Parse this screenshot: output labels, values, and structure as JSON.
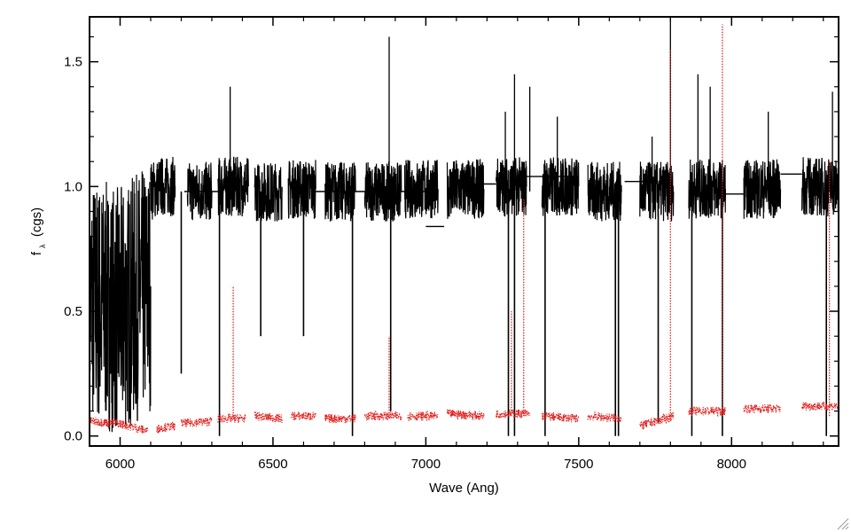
{
  "chart_data": {
    "type": "line",
    "title": "",
    "xlabel": "Wave (Ang)",
    "ylabel_main": "f",
    "ylabel_sub": "λ",
    "ylabel_unit": "(cgs)",
    "xlim": [
      5900,
      8350
    ],
    "ylim": [
      -0.04,
      1.68
    ],
    "xticks": [
      6000,
      6500,
      7000,
      7500,
      8000
    ],
    "xtick_labels": [
      "6000",
      "6500",
      "7000",
      "7500",
      "8000"
    ],
    "xminor_step": 100,
    "yticks": [
      0.0,
      0.5,
      1.0,
      1.5
    ],
    "ytick_labels": [
      "0.0",
      "0.5",
      "1.0",
      "1.5"
    ],
    "yminor_step": 0.1,
    "grid": false,
    "series": [
      {
        "style": "solid",
        "color": "#000000",
        "segments": [
          {
            "x": [
              5900,
              6000,
              6100
            ],
            "y": [
              0.55,
              0.5,
              0.6
            ]
          },
          {
            "x": [
              6100,
              6130,
              6180
            ],
            "y": [
              0.98,
              1.0,
              1.0
            ]
          },
          {
            "x": [
              6220,
              6300
            ],
            "y": [
              0.98,
              0.98
            ]
          },
          {
            "x": [
              6320,
              6420
            ],
            "y": [
              1.0,
              1.0
            ]
          },
          {
            "x": [
              6440,
              6530
            ],
            "y": [
              0.98,
              0.98
            ]
          },
          {
            "x": [
              6550,
              6640
            ],
            "y": [
              0.99,
              0.99
            ]
          },
          {
            "x": [
              6670,
              6770
            ],
            "y": [
              0.98,
              0.98
            ]
          },
          {
            "x": [
              6800,
              6920
            ],
            "y": [
              0.98,
              0.98
            ]
          },
          {
            "x": [
              6930,
              7040
            ],
            "y": [
              0.99,
              0.99
            ]
          },
          {
            "x": [
              7070,
              7190
            ],
            "y": [
              0.99,
              0.99
            ]
          },
          {
            "x": [
              7230,
              7330
            ],
            "y": [
              1.0,
              1.0
            ]
          },
          {
            "x": [
              7380,
              7500
            ],
            "y": [
              1.0,
              1.0
            ]
          },
          {
            "x": [
              7530,
              7640
            ],
            "y": [
              0.98,
              0.98
            ]
          },
          {
            "x": [
              7700,
              7810
            ],
            "y": [
              0.98,
              0.98
            ]
          },
          {
            "x": [
              7860,
              7980
            ],
            "y": [
              0.99,
              0.99
            ]
          },
          {
            "x": [
              8040,
              8160
            ],
            "y": [
              0.99,
              0.99
            ]
          },
          {
            "x": [
              8230,
              8350
            ],
            "y": [
              1.0,
              1.0
            ]
          }
        ],
        "connectors": [
          {
            "x": [
              6210,
              6320
            ],
            "y": [
              0.98,
              0.98
            ]
          },
          {
            "x": [
              6640,
              7000
            ],
            "y": [
              0.98,
              0.98
            ]
          },
          {
            "x": [
              7000,
              7060
            ],
            "y": [
              0.84,
              0.84
            ]
          },
          {
            "x": [
              7090,
              7230
            ],
            "y": [
              1.01,
              1.01
            ]
          },
          {
            "x": [
              7330,
              7500
            ],
            "y": [
              1.04,
              1.04
            ]
          },
          {
            "x": [
              7650,
              7720
            ],
            "y": [
              1.02,
              1.02
            ]
          },
          {
            "x": [
              7980,
              8040
            ],
            "y": [
              0.97,
              0.97
            ]
          },
          {
            "x": [
              8160,
              8230
            ],
            "y": [
              1.05,
              1.05
            ]
          }
        ],
        "spikes_up": [
          {
            "x": 6360,
            "y": 1.4
          },
          {
            "x": 6880,
            "y": 1.6
          },
          {
            "x": 7260,
            "y": 1.3
          },
          {
            "x": 7290,
            "y": 1.45
          },
          {
            "x": 7340,
            "y": 1.4
          },
          {
            "x": 7430,
            "y": 1.28
          },
          {
            "x": 7800,
            "y": 1.68
          },
          {
            "x": 7930,
            "y": 1.4
          },
          {
            "x": 8120,
            "y": 1.3
          },
          {
            "x": 8330,
            "y": 1.38
          },
          {
            "x": 7740,
            "y": 1.2
          },
          {
            "x": 7890,
            "y": 1.45
          }
        ],
        "dips": [
          {
            "x": 6200,
            "y": 0.25
          },
          {
            "x": 6325,
            "y": 0.0
          },
          {
            "x": 6760,
            "y": 0.0
          },
          {
            "x": 6885,
            "y": 0.1
          },
          {
            "x": 7270,
            "y": 0.0
          },
          {
            "x": 7290,
            "y": 0.0
          },
          {
            "x": 7390,
            "y": 0.0
          },
          {
            "x": 7620,
            "y": 0.0
          },
          {
            "x": 7630,
            "y": 0.0
          },
          {
            "x": 7760,
            "y": 0.05
          },
          {
            "x": 7870,
            "y": 0.0
          },
          {
            "x": 7970,
            "y": 0.0
          },
          {
            "x": 8310,
            "y": 0.0
          },
          {
            "x": 6460,
            "y": 0.4
          },
          {
            "x": 6600,
            "y": 0.4
          }
        ]
      },
      {
        "style": "dotted",
        "color": "#e0201e",
        "segments": [
          {
            "x": [
              5900,
              6000,
              6090
            ],
            "y": [
              0.06,
              0.05,
              0.02
            ]
          },
          {
            "x": [
              6120,
              6180
            ],
            "y": [
              0.03,
              0.04
            ]
          },
          {
            "x": [
              6200,
              6300
            ],
            "y": [
              0.05,
              0.06
            ]
          },
          {
            "x": [
              6320,
              6410
            ],
            "y": [
              0.07,
              0.07
            ]
          },
          {
            "x": [
              6440,
              6530
            ],
            "y": [
              0.08,
              0.07
            ]
          },
          {
            "x": [
              6560,
              6640
            ],
            "y": [
              0.08,
              0.08
            ]
          },
          {
            "x": [
              6670,
              6770
            ],
            "y": [
              0.07,
              0.07
            ]
          },
          {
            "x": [
              6800,
              6920
            ],
            "y": [
              0.08,
              0.08
            ]
          },
          {
            "x": [
              6940,
              7040
            ],
            "y": [
              0.08,
              0.08
            ]
          },
          {
            "x": [
              7070,
              7190
            ],
            "y": [
              0.09,
              0.08
            ]
          },
          {
            "x": [
              7230,
              7340
            ],
            "y": [
              0.09,
              0.09
            ]
          },
          {
            "x": [
              7380,
              7500
            ],
            "y": [
              0.08,
              0.07
            ]
          },
          {
            "x": [
              7530,
              7640
            ],
            "y": [
              0.08,
              0.07
            ]
          },
          {
            "x": [
              7700,
              7810
            ],
            "y": [
              0.04,
              0.08
            ]
          },
          {
            "x": [
              7860,
              7980
            ],
            "y": [
              0.1,
              0.1
            ]
          },
          {
            "x": [
              8040,
              8160
            ],
            "y": [
              0.11,
              0.11
            ]
          },
          {
            "x": [
              8230,
              8350
            ],
            "y": [
              0.12,
              0.12
            ]
          }
        ],
        "spikes_up": [
          {
            "x": 6370,
            "y": 0.6
          },
          {
            "x": 6880,
            "y": 0.4
          },
          {
            "x": 7320,
            "y": 0.95
          },
          {
            "x": 7800,
            "y": 1.55
          },
          {
            "x": 7970,
            "y": 1.65
          },
          {
            "x": 8320,
            "y": 1.1
          },
          {
            "x": 5900,
            "y": 0.38
          },
          {
            "x": 7280,
            "y": 0.5
          }
        ]
      }
    ]
  }
}
